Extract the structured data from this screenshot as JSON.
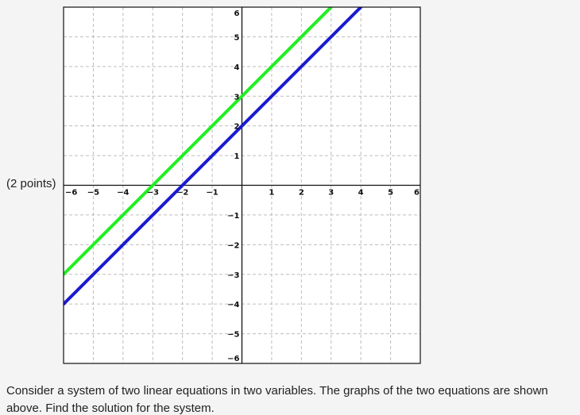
{
  "points_label": "(2 points)",
  "question_text": "Consider a system of two linear equations in two variables. The graphs of the two equations are shown above. Find the solution for the system.",
  "chart_data": {
    "type": "line",
    "title": "",
    "xlabel": "",
    "ylabel": "",
    "xlim": [
      -6,
      6
    ],
    "ylim": [
      -6,
      6
    ],
    "grid": true,
    "x_ticks": [
      -6,
      -5,
      -4,
      -3,
      -2,
      -1,
      1,
      2,
      3,
      4,
      5,
      6
    ],
    "y_ticks": [
      -6,
      -5,
      -4,
      -3,
      -2,
      -1,
      1,
      2,
      3,
      4,
      5,
      6
    ],
    "x_tick_labels": [
      "−6",
      "−5",
      "−4",
      "−3",
      "−2",
      "−1",
      "1",
      "2",
      "3",
      "4",
      "5",
      "6"
    ],
    "y_tick_labels": [
      "−6",
      "−5",
      "−4",
      "−3",
      "−2",
      "−1",
      "1",
      "2",
      "3",
      "4",
      "5",
      "6"
    ],
    "series": [
      {
        "color": "#22ee22",
        "x": [
          -6,
          3
        ],
        "y": [
          -3,
          6
        ]
      },
      {
        "color": "#1a1ad0",
        "x": [
          -6,
          4
        ],
        "y": [
          -4,
          6
        ]
      }
    ]
  }
}
